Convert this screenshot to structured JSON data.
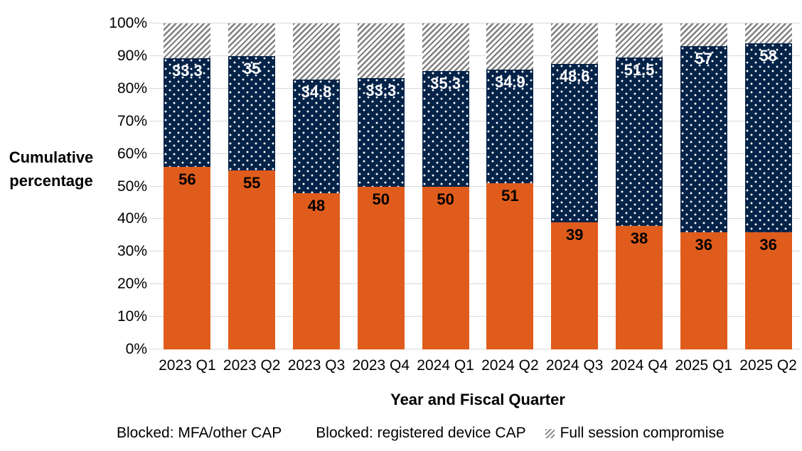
{
  "chart": {
    "y_axis_title": "Cumulative percentage",
    "x_axis_title": "Year and Fiscal Quarter",
    "colors": {
      "orange": "#E05C1C",
      "navy": "#052348",
      "hatch_gray": "#7F7F7F",
      "gridline": "#D9D9D9",
      "text": "#000000"
    }
  },
  "chart_data": {
    "type": "bar",
    "stacked": true,
    "title": "",
    "xlabel": "Year and Fiscal Quarter",
    "ylabel": "Cumulative percentage",
    "ylim": [
      0,
      100
    ],
    "grid": true,
    "legend_position": "bottom",
    "y_tick_values": [
      0,
      10,
      20,
      30,
      40,
      50,
      60,
      70,
      80,
      90,
      100
    ],
    "y_tick_labels": [
      "0%",
      "10%",
      "20%",
      "30%",
      "40%",
      "50%",
      "60%",
      "70%",
      "80%",
      "90%",
      "100%"
    ],
    "categories": [
      "2023 Q1",
      "2023 Q2",
      "2023 Q3",
      "2023 Q4",
      "2024 Q1",
      "2024 Q2",
      "2024 Q3",
      "2024 Q4",
      "2025 Q1",
      "2025 Q2"
    ],
    "series": [
      {
        "name": "Blocked: MFA/other CAP",
        "pattern": "solid",
        "color": "#E05C1C",
        "label_color": "#000000",
        "values": [
          56,
          55,
          48,
          50,
          50,
          51,
          39,
          38,
          36,
          36
        ],
        "labels": [
          "56",
          "55",
          "48",
          "50",
          "50",
          "51",
          "39",
          "38",
          "36",
          "36"
        ]
      },
      {
        "name": "Blocked: registered device CAP",
        "pattern": "dots",
        "color": "#052348",
        "label_color": "#FFFFFF",
        "values": [
          33.3,
          35,
          34.8,
          33.3,
          35.3,
          34.9,
          48.6,
          51.5,
          57,
          58
        ],
        "labels": [
          "33.3",
          "35",
          "34.8",
          "33.3",
          "35.3",
          "34.9",
          "48.6",
          "51.5",
          "57",
          "58"
        ]
      },
      {
        "name": "Full session compromise",
        "pattern": "diagonal-hatch",
        "color": "#7F7F7F",
        "label_color": null,
        "values": [
          10.7,
          10,
          17.2,
          16.7,
          14.7,
          14.1,
          12.4,
          10.5,
          7,
          6
        ],
        "labels": null
      }
    ]
  }
}
